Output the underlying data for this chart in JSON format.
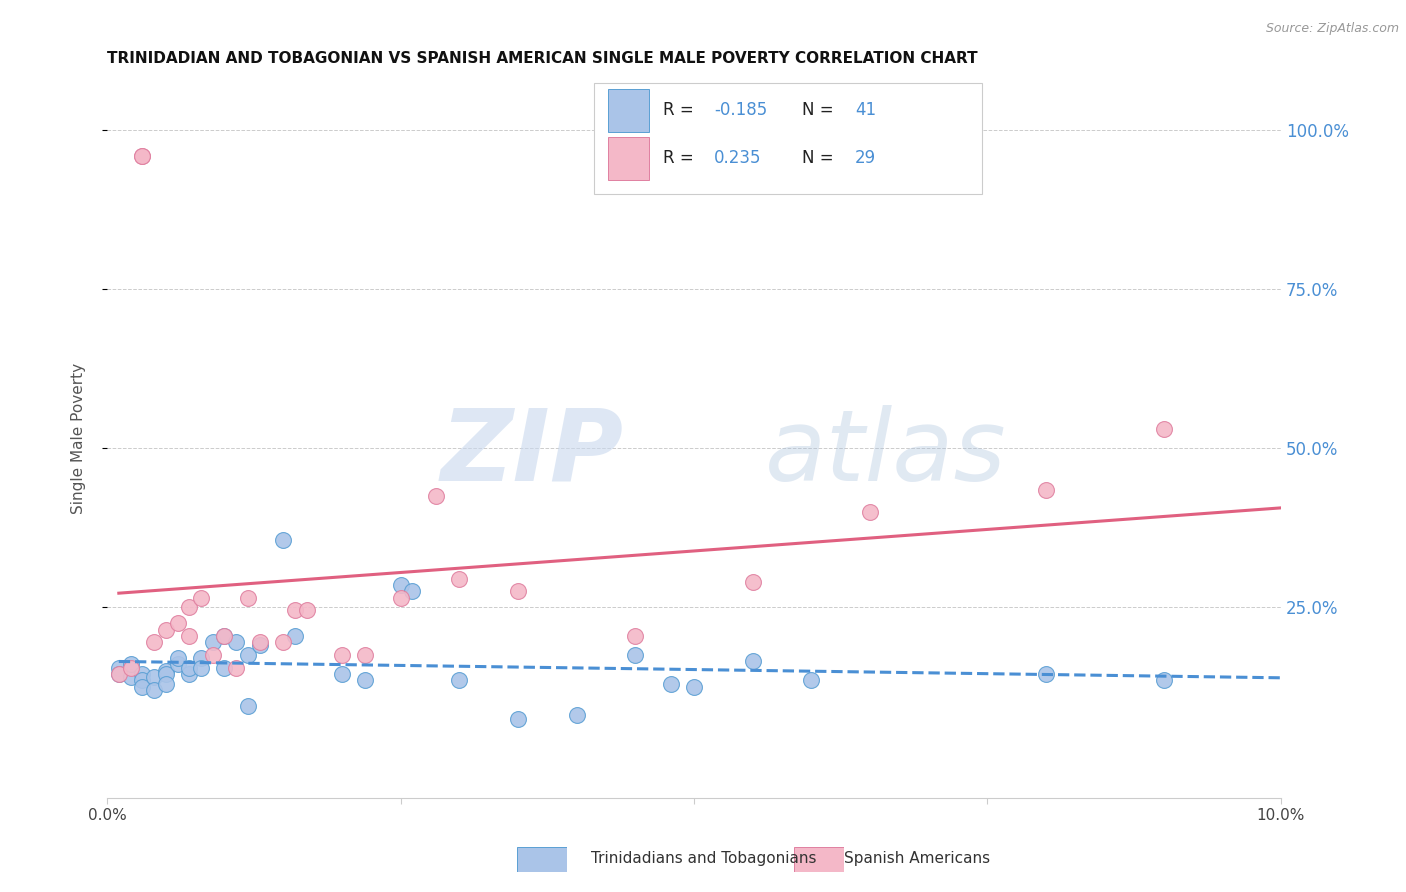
{
  "title": "TRINIDADIAN AND TOBAGONIAN VS SPANISH AMERICAN SINGLE MALE POVERTY CORRELATION CHART",
  "source": "Source: ZipAtlas.com",
  "ylabel": "Single Male Poverty",
  "ytick_labels": [
    "100.0%",
    "75.0%",
    "50.0%",
    "25.0%"
  ],
  "ytick_values": [
    1.0,
    0.75,
    0.5,
    0.25
  ],
  "xlim": [
    0.0,
    0.1
  ],
  "ylim": [
    -0.05,
    1.08
  ],
  "legend_blue_R": "-0.185",
  "legend_blue_N": "41",
  "legend_pink_R": "0.235",
  "legend_pink_N": "29",
  "legend_label_blue": "Trinidadians and Tobagonians",
  "legend_label_pink": "Spanish Americans",
  "blue_fill": "#aac4e8",
  "pink_fill": "#f4b8c8",
  "blue_edge": "#5a9fd4",
  "pink_edge": "#e080a0",
  "blue_line": "#4a8fd4",
  "pink_line": "#e06080",
  "blue_scatter_x": [
    0.001,
    0.001,
    0.002,
    0.002,
    0.003,
    0.003,
    0.003,
    0.004,
    0.004,
    0.005,
    0.005,
    0.005,
    0.006,
    0.006,
    0.007,
    0.007,
    0.008,
    0.008,
    0.009,
    0.01,
    0.01,
    0.011,
    0.012,
    0.012,
    0.013,
    0.015,
    0.016,
    0.02,
    0.022,
    0.025,
    0.026,
    0.03,
    0.035,
    0.04,
    0.045,
    0.048,
    0.05,
    0.055,
    0.06,
    0.08,
    0.09
  ],
  "blue_scatter_y": [
    0.155,
    0.145,
    0.14,
    0.16,
    0.145,
    0.135,
    0.125,
    0.14,
    0.12,
    0.15,
    0.145,
    0.13,
    0.16,
    0.17,
    0.145,
    0.155,
    0.17,
    0.155,
    0.195,
    0.155,
    0.205,
    0.195,
    0.175,
    0.095,
    0.19,
    0.355,
    0.205,
    0.145,
    0.135,
    0.285,
    0.275,
    0.135,
    0.075,
    0.08,
    0.175,
    0.13,
    0.125,
    0.165,
    0.135,
    0.145,
    0.135
  ],
  "pink_scatter_x": [
    0.001,
    0.002,
    0.003,
    0.003,
    0.004,
    0.005,
    0.006,
    0.007,
    0.007,
    0.008,
    0.009,
    0.01,
    0.011,
    0.012,
    0.013,
    0.015,
    0.016,
    0.017,
    0.02,
    0.022,
    0.025,
    0.028,
    0.03,
    0.035,
    0.045,
    0.055,
    0.065,
    0.08,
    0.09
  ],
  "pink_scatter_y": [
    0.145,
    0.155,
    0.96,
    0.96,
    0.195,
    0.215,
    0.225,
    0.205,
    0.25,
    0.265,
    0.175,
    0.205,
    0.155,
    0.265,
    0.195,
    0.195,
    0.245,
    0.245,
    0.175,
    0.175,
    0.265,
    0.425,
    0.295,
    0.275,
    0.205,
    0.29,
    0.4,
    0.435,
    0.53
  ]
}
